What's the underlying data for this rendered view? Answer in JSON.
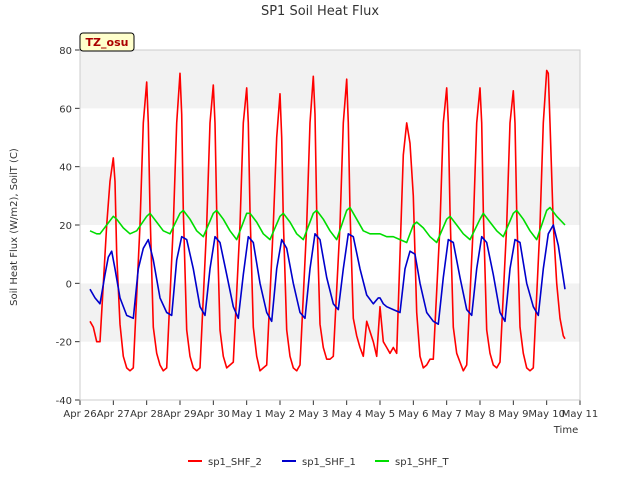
{
  "chart_data": {
    "type": "line",
    "title": "SP1 Soil Heat Flux",
    "xlabel": "Time",
    "ylabel": "Soil Heat Flux (W/m2), SoilT (C)",
    "ylim": [
      -40,
      80
    ],
    "xlim": [
      0,
      15
    ],
    "yticks": [
      -40,
      -20,
      0,
      20,
      40,
      60,
      80
    ],
    "xtick_labels": [
      "Apr 26",
      "Apr 27",
      "Apr 28",
      "Apr 29",
      "Apr 30",
      "May 1",
      "May 2",
      "May 3",
      "May 4",
      "May 5",
      "May 6",
      "May 7",
      "May 8",
      "May 9",
      "May 10",
      "May 11"
    ],
    "x_unit_note": "x values are days since Apr 26",
    "annotation": "TZ_osu",
    "legend_position": "bottom-center",
    "grid": "horizontal bands",
    "series": [
      {
        "name": "sp1_SHF_2",
        "color": "#ff0000",
        "x": [
          0.3,
          0.4,
          0.5,
          0.6,
          0.8,
          0.9,
          1.0,
          1.05,
          1.1,
          1.2,
          1.3,
          1.4,
          1.5,
          1.6,
          1.8,
          1.9,
          2.0,
          2.05,
          2.1,
          2.2,
          2.3,
          2.4,
          2.5,
          2.6,
          2.8,
          2.9,
          3.0,
          3.05,
          3.1,
          3.2,
          3.3,
          3.4,
          3.5,
          3.6,
          3.8,
          3.9,
          4.0,
          4.05,
          4.1,
          4.2,
          4.3,
          4.4,
          4.5,
          4.6,
          4.8,
          4.9,
          5.0,
          5.05,
          5.1,
          5.2,
          5.3,
          5.4,
          5.5,
          5.6,
          5.8,
          5.9,
          6.0,
          6.05,
          6.1,
          6.2,
          6.3,
          6.4,
          6.5,
          6.6,
          6.8,
          6.9,
          7.0,
          7.05,
          7.1,
          7.2,
          7.3,
          7.4,
          7.5,
          7.6,
          7.8,
          7.9,
          8.0,
          8.05,
          8.1,
          8.2,
          8.3,
          8.4,
          8.5,
          8.6,
          8.8,
          8.9,
          9.0,
          9.1,
          9.2,
          9.3,
          9.4,
          9.5,
          9.6,
          9.7,
          9.8,
          9.9,
          10.0,
          10.05,
          10.1,
          10.2,
          10.3,
          10.4,
          10.5,
          10.6,
          10.8,
          10.9,
          11.0,
          11.05,
          11.1,
          11.2,
          11.3,
          11.4,
          11.5,
          11.6,
          11.8,
          11.9,
          12.0,
          12.05,
          12.1,
          12.2,
          12.3,
          12.4,
          12.5,
          12.6,
          12.8,
          12.9,
          13.0,
          13.05,
          13.1,
          13.2,
          13.3,
          13.4,
          13.5,
          13.6,
          13.8,
          13.9,
          14.0,
          14.05,
          14.1,
          14.2,
          14.3,
          14.4,
          14.5,
          14.55
        ],
        "y": [
          -13,
          -15,
          -20,
          -20,
          20,
          35,
          43,
          35,
          10,
          -14,
          -25,
          -29,
          -30,
          -29,
          20,
          55,
          69,
          55,
          25,
          -15,
          -24,
          -28,
          -30,
          -29,
          20,
          55,
          72,
          58,
          25,
          -16,
          -25,
          -29,
          -30,
          -29,
          20,
          55,
          68,
          55,
          25,
          -16,
          -25,
          -29,
          -28,
          -27,
          20,
          55,
          67,
          55,
          25,
          -15,
          -25,
          -30,
          -29,
          -28,
          20,
          50,
          65,
          50,
          22,
          -16,
          -25,
          -29,
          -30,
          -28,
          20,
          55,
          71,
          58,
          25,
          -14,
          -22,
          -26,
          -26,
          -25,
          20,
          55,
          70,
          55,
          25,
          -12,
          -18,
          -22,
          -25,
          -13,
          -20,
          -25,
          -8,
          -20,
          -22,
          -24,
          -22,
          -24,
          10,
          44,
          55,
          48,
          30,
          10,
          -10,
          -25,
          -29,
          -28,
          -26,
          -26,
          20,
          55,
          67,
          55,
          25,
          -15,
          -24,
          -27,
          -30,
          -28,
          20,
          55,
          67,
          55,
          25,
          -16,
          -24,
          -28,
          -29,
          -27,
          20,
          55,
          66,
          55,
          25,
          -15,
          -24,
          -29,
          -30,
          -29,
          20,
          55,
          73,
          72,
          55,
          20,
          0,
          -12,
          -18,
          -19
        ]
      },
      {
        "name": "sp1_SHF_1",
        "color": "#0000cc",
        "x": [
          0.3,
          0.45,
          0.6,
          0.75,
          0.85,
          0.95,
          1.05,
          1.2,
          1.4,
          1.6,
          1.75,
          1.9,
          2.05,
          2.2,
          2.4,
          2.6,
          2.75,
          2.9,
          3.05,
          3.2,
          3.4,
          3.6,
          3.75,
          3.9,
          4.05,
          4.2,
          4.4,
          4.6,
          4.75,
          4.9,
          5.05,
          5.2,
          5.4,
          5.6,
          5.75,
          5.9,
          6.05,
          6.2,
          6.4,
          6.6,
          6.75,
          6.9,
          7.05,
          7.2,
          7.4,
          7.6,
          7.75,
          7.9,
          8.05,
          8.2,
          8.4,
          8.6,
          8.8,
          8.95,
          9.0,
          9.1,
          9.2,
          9.4,
          9.6,
          9.75,
          9.9,
          10.05,
          10.2,
          10.4,
          10.6,
          10.75,
          10.9,
          11.05,
          11.2,
          11.4,
          11.6,
          11.75,
          11.9,
          12.05,
          12.2,
          12.4,
          12.6,
          12.75,
          12.9,
          13.05,
          13.2,
          13.4,
          13.6,
          13.75,
          13.9,
          14.05,
          14.2,
          14.35,
          14.55
        ],
        "y": [
          -2,
          -5,
          -7,
          3,
          9,
          11,
          5,
          -5,
          -11,
          -12,
          5,
          12,
          15,
          8,
          -5,
          -10,
          -11,
          8,
          16,
          15,
          5,
          -8,
          -11,
          5,
          16,
          14,
          3,
          -8,
          -12,
          3,
          16,
          14,
          0,
          -10,
          -13,
          5,
          15,
          12,
          0,
          -10,
          -12,
          5,
          17,
          15,
          2,
          -7,
          -9,
          5,
          17,
          16,
          5,
          -4,
          -7,
          -5,
          -5,
          -7,
          -8,
          -9,
          -10,
          5,
          11,
          10,
          0,
          -10,
          -13,
          -14,
          2,
          15,
          14,
          2,
          -9,
          -11,
          5,
          16,
          14,
          3,
          -10,
          -13,
          5,
          15,
          14,
          0,
          -8,
          -11,
          5,
          17,
          20,
          13,
          -2
        ]
      },
      {
        "name": "sp1_SHF_T",
        "color": "#00dd00",
        "x": [
          0.3,
          0.5,
          0.6,
          0.8,
          1.0,
          1.1,
          1.3,
          1.5,
          1.7,
          2.0,
          2.1,
          2.3,
          2.5,
          2.7,
          3.0,
          3.1,
          3.3,
          3.5,
          3.7,
          4.0,
          4.1,
          4.3,
          4.5,
          4.7,
          5.0,
          5.1,
          5.3,
          5.5,
          5.7,
          6.0,
          6.1,
          6.3,
          6.5,
          6.7,
          7.0,
          7.1,
          7.3,
          7.5,
          7.7,
          8.0,
          8.1,
          8.3,
          8.5,
          8.7,
          9.0,
          9.2,
          9.4,
          9.6,
          9.8,
          10.0,
          10.1,
          10.3,
          10.5,
          10.7,
          11.0,
          11.1,
          11.3,
          11.5,
          11.7,
          12.0,
          12.1,
          12.3,
          12.5,
          12.7,
          13.0,
          13.1,
          13.3,
          13.5,
          13.7,
          14.0,
          14.1,
          14.3,
          14.55
        ],
        "y": [
          18,
          17,
          17,
          20,
          23,
          22,
          19,
          17,
          18,
          23,
          24,
          21,
          18,
          17,
          24,
          25,
          22,
          18,
          16,
          24,
          25,
          22,
          18,
          15,
          24,
          24,
          21,
          17,
          15,
          23,
          24,
          21,
          17,
          15,
          24,
          25,
          22,
          18,
          15,
          25,
          26,
          22,
          18,
          17,
          17,
          16,
          16,
          15,
          14,
          20,
          21,
          19,
          16,
          14,
          22,
          23,
          20,
          17,
          15,
          22,
          24,
          21,
          18,
          16,
          24,
          25,
          22,
          18,
          15,
          25,
          26,
          23,
          20
        ]
      }
    ]
  }
}
